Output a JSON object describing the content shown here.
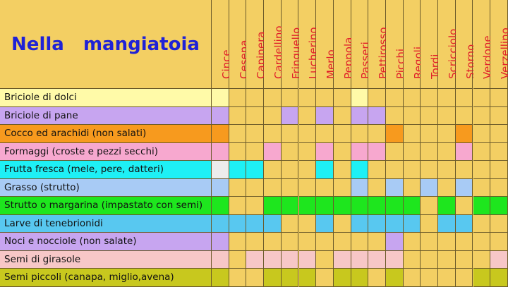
{
  "title": "Nella   mangiatoia",
  "columns": [
    "Cince",
    "Cesena",
    "Capinera",
    "Cardellino",
    "Fringuello",
    "Lucherino",
    "Merlo",
    "Peppola",
    "Passeri",
    "Pettirosso",
    "Picchi",
    "Regoli",
    "Tordi",
    "Scricciolo",
    "Storno",
    "Verdone",
    "Verzellino"
  ],
  "rows": [
    {
      "label": "Briciole di dolci",
      "color": "#fffaa8",
      "marks": [
        0,
        8
      ]
    },
    {
      "label": "Briciole di pane",
      "color": "#c7a5f0",
      "marks": [
        0,
        4,
        6,
        8,
        9
      ]
    },
    {
      "label": "Cocco ed arachidi (non salati)",
      "color": "#f79a1e",
      "marks": [
        0,
        10,
        14
      ]
    },
    {
      "label": "Formaggi (croste e pezzi secchi)",
      "color": "#f7a8cf",
      "marks": [
        0,
        3,
        6,
        8,
        9,
        14
      ]
    },
    {
      "label": "Frutta fresca (mele, pere, datteri)",
      "color": "#1ef0f5",
      "marks": [
        1,
        2,
        6,
        8
      ]
    },
    {
      "label": "Grasso (strutto)",
      "color": "#a8cbf5",
      "marks": [
        0,
        8,
        10,
        12,
        14
      ]
    },
    {
      "label": "Strutto o margarina (impastato con semi)",
      "color": "#1ee61e",
      "marks": [
        0,
        3,
        4,
        5,
        6,
        7,
        8,
        9,
        10,
        11,
        13,
        15,
        16
      ]
    },
    {
      "label": "Larve di tenebrionidi",
      "color": "#58c8f0",
      "marks": [
        0,
        1,
        2,
        3,
        6,
        8,
        9,
        10,
        11,
        13,
        14
      ]
    },
    {
      "label": "Noci e nocciole (non salate)",
      "color": "#c7a5f0",
      "marks": [
        0,
        10
      ]
    },
    {
      "label": "Semi di girasole",
      "color": "#f7c7c7",
      "marks": [
        0,
        2,
        3,
        4,
        5,
        7,
        8,
        9,
        10,
        16
      ]
    },
    {
      "label": "Semi piccoli (canapa, miglio,avena)",
      "color": "#c8c81e",
      "marks": [
        0,
        3,
        4,
        5,
        7,
        8,
        10,
        15,
        16
      ]
    }
  ],
  "special_cell": {
    "row": 4,
    "col": 0,
    "color": "#ececec"
  },
  "base_color": "#f3cf63"
}
